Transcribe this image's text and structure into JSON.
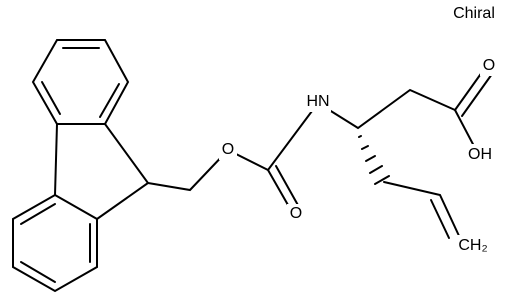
{
  "header": {
    "title": "Chiral"
  },
  "atoms": [
    {
      "label": "O"
    },
    {
      "label": "O"
    },
    {
      "label": "HN"
    },
    {
      "label": "O"
    },
    {
      "label": "OH"
    },
    {
      "label": "CH₂"
    }
  ]
}
